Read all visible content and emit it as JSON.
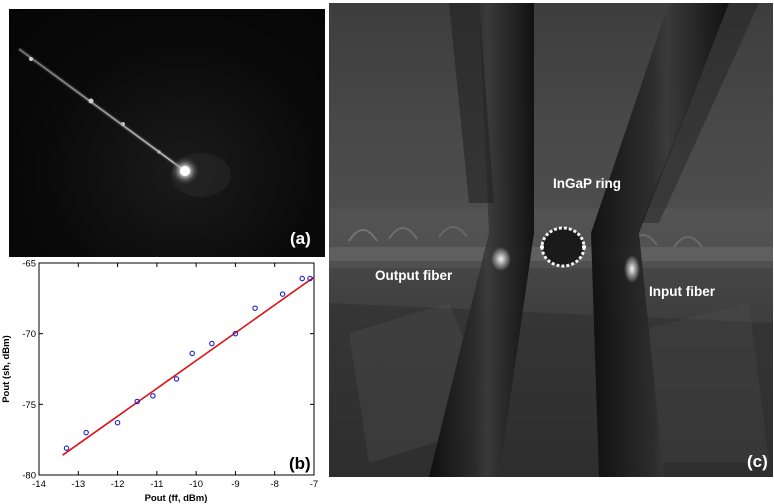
{
  "panels": {
    "a": {
      "letter": "(a)"
    },
    "b": {
      "letter": "(b)"
    },
    "c": {
      "letter": "(c)",
      "labels": {
        "ring": "InGaP ring",
        "output": "Output fiber",
        "input": "Input fiber"
      }
    }
  },
  "chart_data": {
    "type": "scatter",
    "xlabel": "Pout (ff, dBm)",
    "ylabel": "Pout (sh, dBm)",
    "xlim": [
      -14,
      -7
    ],
    "ylim": [
      -80,
      -65
    ],
    "xticks": [
      -14,
      -13,
      -12,
      -11,
      -10,
      -9,
      -8,
      -7
    ],
    "yticks": [
      -65,
      -70,
      -75,
      -80
    ],
    "grid": false,
    "points": {
      "x": [
        -13.3,
        -12.8,
        -12.0,
        -11.5,
        -11.1,
        -10.5,
        -10.1,
        -9.6,
        -9.0,
        -8.5,
        -7.8,
        -7.3,
        -7.1
      ],
      "y": [
        -78.1,
        -77.0,
        -76.3,
        -74.8,
        -74.4,
        -73.2,
        -71.4,
        -70.7,
        -70.0,
        -68.2,
        -67.2,
        -66.1,
        -66.1
      ]
    },
    "fit": {
      "x": [
        -13.4,
        -7.0
      ],
      "y": [
        -78.6,
        -66.0
      ]
    },
    "colors": {
      "points": "#1f1fd0",
      "fit": "#e01010"
    }
  }
}
